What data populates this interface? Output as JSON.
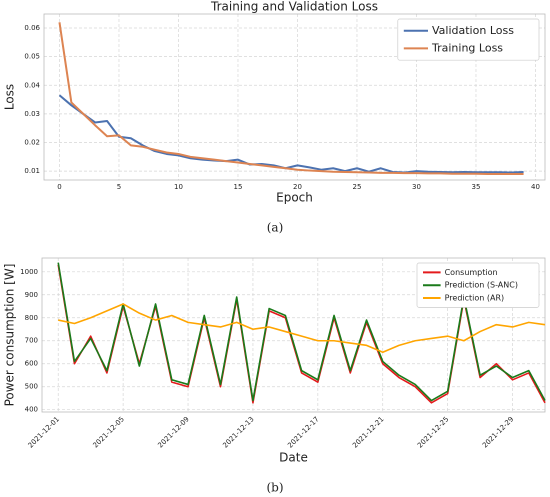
{
  "chart_data": [
    {
      "type": "line",
      "title": "Training and Validation Loss",
      "x_label": "Epoch",
      "y_label": "Loss",
      "caption": "(a)",
      "x": [
        0,
        1,
        2,
        3,
        4,
        5,
        6,
        7,
        8,
        9,
        10,
        11,
        12,
        13,
        14,
        15,
        16,
        17,
        18,
        19,
        20,
        21,
        22,
        23,
        24,
        25,
        26,
        27,
        28,
        29,
        30,
        31,
        32,
        33,
        34,
        35,
        36,
        37,
        38,
        39
      ],
      "series": [
        {
          "name": "Validation Loss",
          "color": "#4c72b0",
          "values": [
            0.0365,
            0.033,
            0.03,
            0.027,
            0.0275,
            0.022,
            0.0215,
            0.019,
            0.017,
            0.016,
            0.0155,
            0.0145,
            0.014,
            0.0137,
            0.0135,
            0.014,
            0.0123,
            0.0125,
            0.012,
            0.011,
            0.012,
            0.0113,
            0.0105,
            0.011,
            0.01,
            0.011,
            0.0098,
            0.011,
            0.0097,
            0.0095,
            0.01,
            0.0098,
            0.0097,
            0.0096,
            0.0097,
            0.0096,
            0.0096,
            0.0096,
            0.0095,
            0.0097
          ]
        },
        {
          "name": "Training Loss",
          "color": "#dd8452",
          "values": [
            0.062,
            0.034,
            0.03,
            0.026,
            0.0222,
            0.0225,
            0.019,
            0.0185,
            0.0175,
            0.0165,
            0.016,
            0.015,
            0.0145,
            0.014,
            0.0135,
            0.013,
            0.0125,
            0.012,
            0.0115,
            0.011,
            0.0105,
            0.0102,
            0.01,
            0.0098,
            0.0097,
            0.0096,
            0.0095,
            0.0094,
            0.0094,
            0.0093,
            0.0093,
            0.0092,
            0.0092,
            0.0091,
            0.0091,
            0.0091,
            0.009,
            0.009,
            0.009,
            0.009
          ]
        }
      ],
      "xlim": [
        -1.3,
        40.8
      ],
      "xticks": [
        0,
        5,
        10,
        15,
        20,
        25,
        30,
        35,
        40
      ],
      "ylim": [
        0.0069,
        0.0649
      ],
      "yticks": [
        0.01,
        0.02,
        0.03,
        0.04,
        0.05,
        0.06
      ],
      "grid": true,
      "legend": "upper right"
    },
    {
      "type": "line",
      "x_label": "Date",
      "y_label": "Power consumption [W]",
      "caption": "(b)",
      "x": [
        "2021-12-01",
        "2021-12-02",
        "2021-12-03",
        "2021-12-04",
        "2021-12-05",
        "2021-12-06",
        "2021-12-07",
        "2021-12-08",
        "2021-12-09",
        "2021-12-10",
        "2021-12-11",
        "2021-12-12",
        "2021-12-13",
        "2021-12-14",
        "2021-12-15",
        "2021-12-16",
        "2021-12-17",
        "2021-12-18",
        "2021-12-19",
        "2021-12-20",
        "2021-12-21",
        "2021-12-22",
        "2021-12-23",
        "2021-12-24",
        "2021-12-25",
        "2021-12-26",
        "2021-12-27",
        "2021-12-28",
        "2021-12-29",
        "2021-12-30",
        "2021-12-31"
      ],
      "series": [
        {
          "name": "Consumption",
          "color": "#e41a1c",
          "values": [
            1030,
            600,
            720,
            560,
            850,
            600,
            850,
            520,
            500,
            800,
            500,
            880,
            430,
            830,
            800,
            560,
            520,
            800,
            560,
            780,
            600,
            540,
            500,
            430,
            470,
            880,
            540,
            600,
            530,
            560,
            430
          ]
        },
        {
          "name": "Prediction (S-ANC)",
          "color": "#1a7a1a",
          "values": [
            1040,
            610,
            710,
            570,
            860,
            590,
            860,
            530,
            510,
            810,
            510,
            890,
            440,
            840,
            810,
            570,
            530,
            810,
            570,
            790,
            610,
            550,
            510,
            440,
            480,
            890,
            550,
            590,
            540,
            570,
            440
          ]
        },
        {
          "name": "Prediction (AR)",
          "color": "#ffa500",
          "values": [
            790,
            775,
            800,
            830,
            860,
            820,
            790,
            810,
            780,
            770,
            760,
            780,
            750,
            760,
            740,
            720,
            700,
            700,
            690,
            680,
            650,
            680,
            700,
            710,
            720,
            700,
            740,
            770,
            760,
            780,
            770
          ]
        }
      ],
      "xlim": [
        "2021-11-30",
        "2021-12-31"
      ],
      "xticks": [
        "2021-12-01",
        "2021-12-05",
        "2021-12-09",
        "2021-12-13",
        "2021-12-17",
        "2021-12-21",
        "2021-12-25",
        "2021-12-29"
      ],
      "ylim": [
        390,
        1060
      ],
      "yticks": [
        400,
        500,
        600,
        700,
        800,
        900,
        1000
      ],
      "grid": true,
      "legend": "upper right"
    }
  ]
}
